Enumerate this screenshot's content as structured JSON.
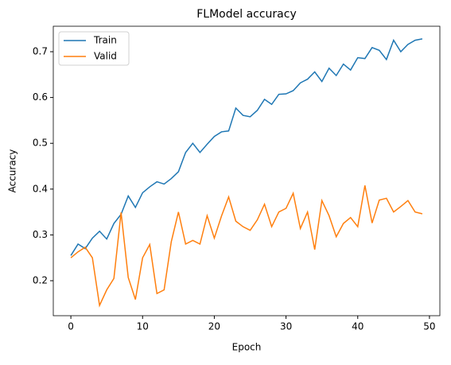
{
  "chart_data": {
    "type": "line",
    "title": "FLModel accuracy",
    "xlabel": "Epoch",
    "ylabel": "Accuracy",
    "x": [
      0,
      1,
      2,
      3,
      4,
      5,
      6,
      7,
      8,
      9,
      10,
      11,
      12,
      13,
      14,
      15,
      16,
      17,
      18,
      19,
      20,
      21,
      22,
      23,
      24,
      25,
      26,
      27,
      28,
      29,
      30,
      31,
      32,
      33,
      34,
      35,
      36,
      37,
      38,
      39,
      40,
      41,
      42,
      43,
      44,
      45,
      46,
      47,
      48,
      49
    ],
    "series": [
      {
        "name": "Train",
        "color": "#1f77b4",
        "values": [
          0.255,
          0.28,
          0.27,
          0.293,
          0.308,
          0.291,
          0.325,
          0.345,
          0.385,
          0.36,
          0.392,
          0.405,
          0.416,
          0.411,
          0.423,
          0.438,
          0.48,
          0.5,
          0.48,
          0.498,
          0.515,
          0.525,
          0.527,
          0.577,
          0.561,
          0.558,
          0.572,
          0.596,
          0.585,
          0.607,
          0.608,
          0.615,
          0.632,
          0.64,
          0.656,
          0.635,
          0.664,
          0.648,
          0.673,
          0.66,
          0.687,
          0.685,
          0.709,
          0.703,
          0.683,
          0.725,
          0.7,
          0.716,
          0.725,
          0.728
        ]
      },
      {
        "name": "Valid",
        "color": "#ff7f0e",
        "values": [
          0.25,
          0.263,
          0.273,
          0.25,
          0.146,
          0.18,
          0.205,
          0.349,
          0.207,
          0.159,
          0.25,
          0.279,
          0.172,
          0.18,
          0.285,
          0.35,
          0.28,
          0.288,
          0.28,
          0.342,
          0.293,
          0.341,
          0.383,
          0.33,
          0.318,
          0.31,
          0.333,
          0.367,
          0.318,
          0.35,
          0.358,
          0.391,
          0.314,
          0.35,
          0.268,
          0.375,
          0.342,
          0.296,
          0.325,
          0.338,
          0.318,
          0.408,
          0.326,
          0.376,
          0.38,
          0.35,
          0.362,
          0.375,
          0.35,
          0.346
        ]
      }
    ],
    "xlim": [
      -2.45,
      51.45
    ],
    "ylim": [
      0.1236,
      0.7556
    ],
    "xticks": [
      0,
      10,
      20,
      30,
      40,
      50
    ],
    "yticks": [
      0.2,
      0.3,
      0.4,
      0.5,
      0.6,
      0.7
    ],
    "legend": "upper left"
  }
}
